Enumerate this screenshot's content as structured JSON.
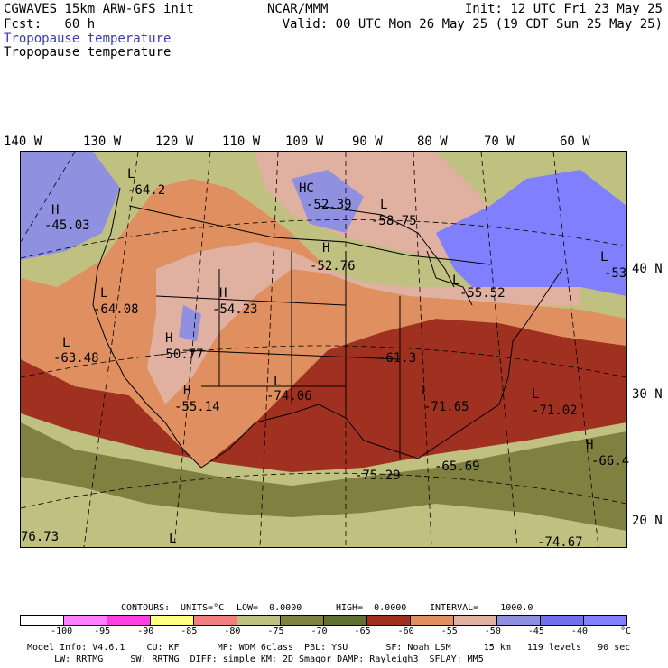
{
  "header": {
    "model": "CGWAVES 15km ARW-GFS init",
    "fcst": "Fcst:   60 h",
    "org": "NCAR/MMM",
    "init": "Init: 12 UTC Fri 23 May 25",
    "valid": "Valid: 00 UTC Mon 26 May 25 (19 CDT Sun 25 May 25)",
    "field_blue": "Tropopause temperature",
    "field_black": "Tropopause temperature"
  },
  "map": {
    "lon_labels": [
      "140 W",
      "130 W",
      "120 W",
      "110 W",
      "100 W",
      "90 W",
      "80 W",
      "70 W",
      "60 W"
    ],
    "lat_labels": [
      "40 N",
      "30 N",
      "20 N"
    ],
    "annotations": [
      {
        "text": "L",
        "id": "l1"
      },
      {
        "text": "-64.2",
        "id": "v1"
      },
      {
        "text": "H",
        "id": "h1"
      },
      {
        "text": "-45.03",
        "id": "v2"
      },
      {
        "text": "HC",
        "id": "h2"
      },
      {
        "text": "-52.39",
        "id": "v3"
      },
      {
        "text": "L",
        "id": "l2"
      },
      {
        "text": "-58.75",
        "id": "v4"
      },
      {
        "text": "H",
        "id": "h3"
      },
      {
        "text": "-52.76",
        "id": "v5"
      },
      {
        "text": "L",
        "id": "l3"
      },
      {
        "text": "-64.08",
        "id": "v6"
      },
      {
        "text": "H",
        "id": "h4"
      },
      {
        "text": "-54.23",
        "id": "v7"
      },
      {
        "text": "L",
        "id": "l4"
      },
      {
        "text": "-63.48",
        "id": "v8"
      },
      {
        "text": "H",
        "id": "h5"
      },
      {
        "text": "-50.77",
        "id": "v9"
      },
      {
        "text": "H",
        "id": "h6"
      },
      {
        "text": "-55.14",
        "id": "v10"
      },
      {
        "text": "L",
        "id": "l5"
      },
      {
        "text": "-74.06",
        "id": "v11"
      },
      {
        "text": "L",
        "id": "l6"
      },
      {
        "text": "-55.52",
        "id": "v12"
      },
      {
        "text": "L",
        "id": "l7"
      },
      {
        "text": "-53",
        "id": "v13"
      },
      {
        "text": "-61.3",
        "id": "v14"
      },
      {
        "text": "L",
        "id": "l8"
      },
      {
        "text": "-71.65",
        "id": "v15"
      },
      {
        "text": "L",
        "id": "l9"
      },
      {
        "text": "-71.02",
        "id": "v16"
      },
      {
        "text": "-75.29",
        "id": "v17"
      },
      {
        "text": "-65.69",
        "id": "v18"
      },
      {
        "text": "H",
        "id": "h7"
      },
      {
        "text": "-66.4",
        "id": "v19"
      },
      {
        "text": "76.73",
        "id": "v20"
      },
      {
        "text": "L",
        "id": "l10"
      },
      {
        "text": "-74.67",
        "id": "v21"
      }
    ]
  },
  "contours": {
    "label": "CONTOURS:",
    "units": "UNITS=°C",
    "low": "LOW=  0.0000",
    "high": "HIGH=  0.0000",
    "interval": "INTERVAL=    1000.0"
  },
  "colorbar": {
    "colors": [
      "#ffffff",
      "#ff80ff",
      "#ff40e0",
      "#ffff80",
      "#f08080",
      "#c0c080",
      "#808040",
      "#607030",
      "#a03020",
      "#e09060",
      "#e0b0a0",
      "#9090e0",
      "#7070f0",
      "#8080ff"
    ],
    "ticks": [
      "-100",
      "-95",
      "-90",
      "-85",
      "-80",
      "-75",
      "-70",
      "-65",
      "-60",
      "-55",
      "-50",
      "-45",
      "-40"
    ],
    "unit": "°C"
  },
  "footer": {
    "line1": "Model Info: V4.6.1    CU: KF       MP: WDM 6class  PBL: YSU       SF: Noah LSM      15 km   119 levels   90 sec",
    "line2": "     LW: RRTMG     SW: RRTMG  DIFF: simple KM: 2D Smagor DAMP: Rayleigh3  SFLAY: MM5"
  }
}
